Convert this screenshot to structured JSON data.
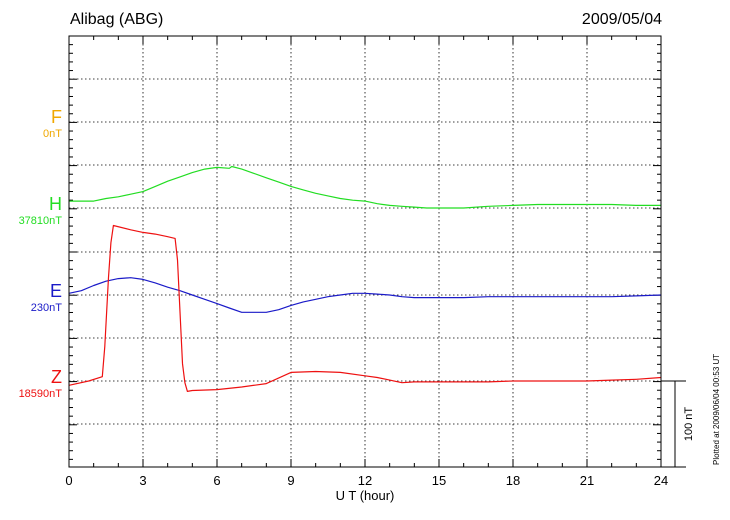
{
  "chart_data": {
    "type": "line",
    "title": "Alibag (ABG)",
    "date": "2009/05/04",
    "xlabel": "U T (hour)",
    "xlim": [
      0,
      24
    ],
    "xticks": [
      "0",
      "3",
      "6",
      "9",
      "12",
      "15",
      "18",
      "21",
      "24"
    ],
    "grid": true,
    "scale_label": "100 nT",
    "plotted_note": "Plotted at 2009/06/04 00:53 UT",
    "components": [
      {
        "letter": "F",
        "base": "0nT",
        "color": "#f0a800"
      },
      {
        "letter": "H",
        "base": "37810nT",
        "color": "#22dd22"
      },
      {
        "letter": "E",
        "base": "230nT",
        "color": "#1a1ac8"
      },
      {
        "letter": "Z",
        "base": "18590nT",
        "color": "#ee1111"
      }
    ],
    "series": [
      {
        "name": "H",
        "color": "#22dd22",
        "x": [
          0,
          1,
          1.5,
          2,
          2.5,
          3,
          3.5,
          4,
          4.5,
          5,
          5.5,
          6,
          6.5,
          6.6,
          7,
          7.5,
          8,
          8.5,
          9,
          9.5,
          10,
          10.5,
          11,
          11.5,
          12,
          12.5,
          13,
          13.5,
          14,
          14.5,
          15,
          15.5,
          16,
          17,
          18,
          19,
          20,
          21,
          22,
          23,
          24
        ],
        "y": [
          8,
          8,
          11,
          13,
          16,
          19,
          25,
          31,
          36,
          41,
          45,
          47,
          46,
          48,
          45,
          40,
          35,
          30,
          25,
          21,
          17,
          14,
          11,
          9,
          8,
          5,
          3,
          2,
          1,
          0,
          0,
          0,
          0,
          2,
          3,
          4,
          4,
          4,
          4,
          3,
          3
        ]
      },
      {
        "name": "E",
        "color": "#1a1ac8",
        "x": [
          0,
          0.5,
          1,
          1.5,
          2,
          2.5,
          3,
          3.5,
          4,
          4.5,
          5,
          5.5,
          6,
          6.5,
          7,
          7.5,
          8,
          8.5,
          9,
          9.5,
          10,
          10.5,
          11,
          11.5,
          12,
          12.5,
          13,
          13.5,
          14,
          15,
          16,
          17,
          18,
          19,
          20,
          21,
          22,
          23,
          24
        ],
        "y": [
          2,
          5,
          11,
          16,
          19,
          20,
          18,
          14,
          9,
          5,
          0,
          -5,
          -10,
          -15,
          -20,
          -20,
          -20,
          -17,
          -12,
          -8,
          -5,
          -2,
          0,
          2,
          2,
          1,
          0,
          -2,
          -3,
          -3,
          -3,
          -2,
          -2,
          -2,
          -2,
          -2,
          -2,
          -1,
          0
        ]
      },
      {
        "name": "Z",
        "color": "#ee1111",
        "x": [
          0,
          0.8,
          1.35,
          1.45,
          1.6,
          1.7,
          1.8,
          2.5,
          3,
          3.5,
          4,
          4.3,
          4.4,
          4.5,
          4.6,
          4.7,
          4.8,
          5,
          6,
          7,
          8,
          9,
          10,
          11,
          12,
          12.5,
          13,
          13.5,
          14,
          15,
          16,
          17,
          18,
          19,
          20,
          21,
          22,
          23,
          24
        ],
        "y": [
          -5,
          0,
          5,
          40,
          120,
          160,
          180,
          175,
          172,
          170,
          167,
          165,
          140,
          80,
          20,
          -2,
          -12,
          -11,
          -10,
          -7,
          -3,
          10,
          11,
          10,
          6,
          4,
          1,
          -2,
          -1,
          -1,
          -1,
          -1,
          0,
          0,
          0,
          0,
          1,
          2,
          4
        ]
      }
    ]
  }
}
